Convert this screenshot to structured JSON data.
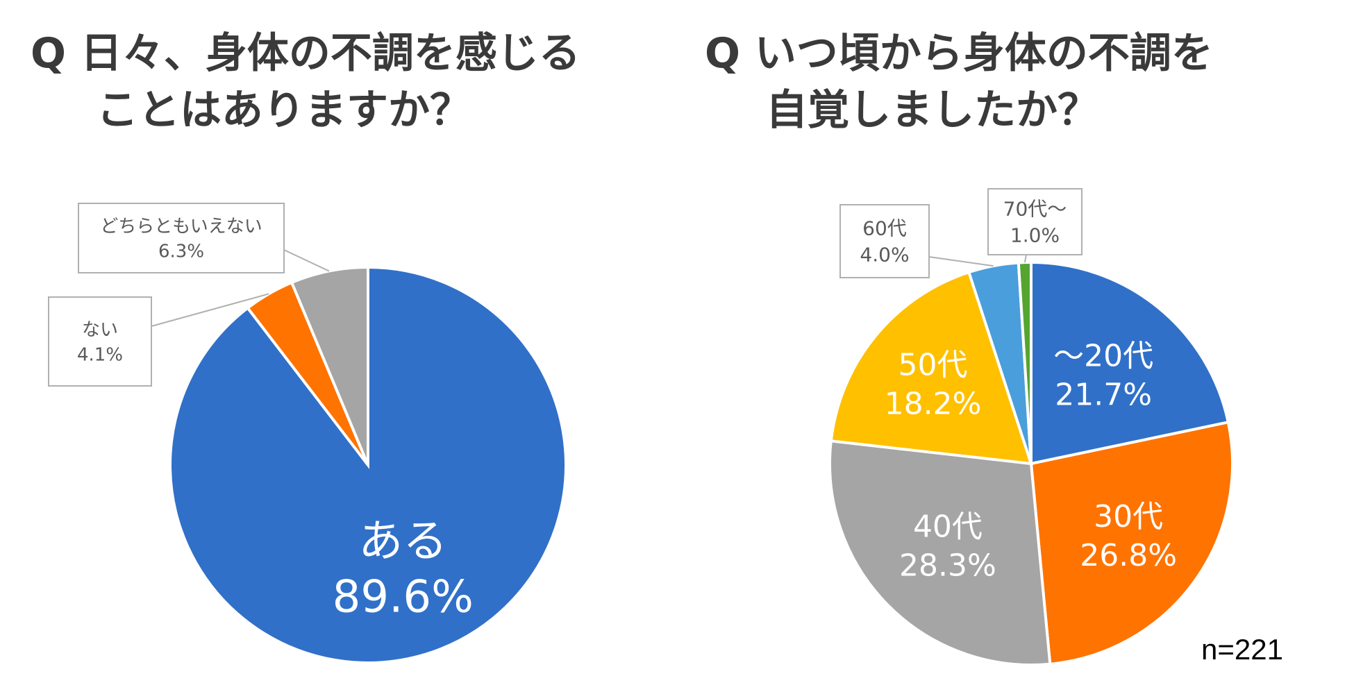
{
  "left_title": {
    "line1": "Q 日々、身体の不調を感じる",
    "line2": "ことはありますか？"
  },
  "right_title": {
    "line1": "Q いつ頃から身体の不調を",
    "line2": "自覚しましたか？"
  },
  "sample_size": "n=221",
  "chart_data": [
    {
      "type": "pie",
      "start": "top",
      "direction": "clockwise",
      "slices": [
        {
          "label": "ある",
          "value": 89.6,
          "display": "89.6%",
          "color": "#3070C8"
        },
        {
          "label": "ない",
          "value": 4.1,
          "display": "4.1%",
          "color": "#FF7300"
        },
        {
          "label": "どちらともいえない",
          "value": 6.3,
          "display": "6.3%",
          "color": "#A5A5A5"
        }
      ]
    },
    {
      "type": "pie",
      "start": "top",
      "direction": "clockwise",
      "slices": [
        {
          "label": "～20代",
          "value": 21.7,
          "display": "21.7%",
          "color": "#3070C8"
        },
        {
          "label": "30代",
          "value": 26.8,
          "display": "26.8%",
          "color": "#FF7300"
        },
        {
          "label": "40代",
          "value": 28.3,
          "display": "28.3%",
          "color": "#A5A5A5"
        },
        {
          "label": "50代",
          "value": 18.2,
          "display": "18.2%",
          "color": "#FFC000"
        },
        {
          "label": "60代",
          "value": 4.0,
          "display": "4.0%",
          "color": "#4A9EDC"
        },
        {
          "label": "70代～",
          "value": 1.0,
          "display": "1.0%",
          "color": "#55A530"
        }
      ]
    }
  ]
}
